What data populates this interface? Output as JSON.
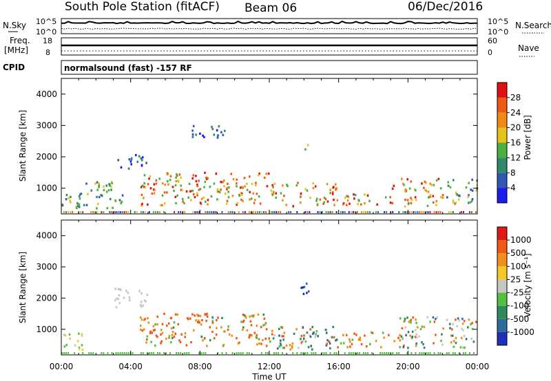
{
  "header": {
    "station": "South Pole Station (fitACF)",
    "beam": "Beam 06",
    "date": "06/Dec/2016"
  },
  "top_panels": {
    "nsky_label": "N.Sky",
    "nsearch_label": "N.Search",
    "freq_label_1": "Freq.",
    "freq_label_2": "[MHz]",
    "nave_label": "Nave",
    "cpid_label": "CPID",
    "cpid_text": "normalsound (fast) -157 RF",
    "noise_left_ticks": [
      "10^5",
      "10^0"
    ],
    "noise_right_ticks": [
      "10^5",
      "10^0"
    ],
    "freq_ticks": [
      "18",
      "8"
    ],
    "nave_ticks": [
      "60",
      "0"
    ]
  },
  "chart_data": [
    {
      "type": "heatmap",
      "panel": "power",
      "ylabel": "Slant Range [km]",
      "xlabel": "",
      "ylim": [
        180,
        4500
      ],
      "xlim_hours": [
        0,
        24
      ],
      "y_ticks": [
        "1000",
        "2000",
        "3000",
        "4000"
      ],
      "x_ticks": [
        "00:00",
        "04:00",
        "08:00",
        "12:00",
        "16:00",
        "20:00",
        "00:00"
      ],
      "colorbar": {
        "label": "Power [dB]",
        "ticks": [
          "4",
          "8",
          "12",
          "16",
          "20",
          "24",
          "28"
        ],
        "colors": [
          "#1c1cf0",
          "#2e58b4",
          "#2e8a6a",
          "#4bb041",
          "#e6c21a",
          "#f08a16",
          "#ee5a14",
          "#e01010"
        ]
      },
      "regions": [
        {
          "t": [
            0.0,
            1.2
          ],
          "r": [
            300,
            900
          ],
          "level": "mid"
        },
        {
          "t": [
            1.2,
            3.5
          ],
          "r": [
            350,
            1200
          ],
          "level": "mid"
        },
        {
          "t": [
            3.0,
            5.0
          ],
          "r": [
            1600,
            2100
          ],
          "level": "low"
        },
        {
          "t": [
            4.5,
            12.0
          ],
          "r": [
            450,
            1500
          ],
          "level": "high"
        },
        {
          "t": [
            12.0,
            16.0
          ],
          "r": [
            400,
            1200
          ],
          "level": "high"
        },
        {
          "t": [
            16.0,
            19.0
          ],
          "r": [
            450,
            800
          ],
          "level": "high"
        },
        {
          "t": [
            19.0,
            22.0
          ],
          "r": [
            400,
            1300
          ],
          "level": "high"
        },
        {
          "t": [
            22.0,
            24.0
          ],
          "r": [
            500,
            1300
          ],
          "level": "mid"
        },
        {
          "t": [
            7.5,
            9.5
          ],
          "r": [
            2600,
            3000
          ],
          "level": "low"
        },
        {
          "t": [
            13.8,
            14.2
          ],
          "r": [
            2100,
            2400
          ],
          "level": "mid"
        }
      ]
    },
    {
      "type": "heatmap",
      "panel": "velocity",
      "ylabel": "Slant Range [km]",
      "xlabel": "Time UT",
      "ylim": [
        180,
        4500
      ],
      "xlim_hours": [
        0,
        24
      ],
      "y_ticks": [
        "1000",
        "2000",
        "3000",
        "4000"
      ],
      "x_ticks": [
        "00:00",
        "04:00",
        "08:00",
        "12:00",
        "16:00",
        "20:00",
        "00:00"
      ],
      "colorbar": {
        "label": "Velocity [m s⁻¹]",
        "ticks": [
          "1000",
          "500",
          "100",
          "25",
          "-25",
          "-100",
          "-500",
          "-1000"
        ],
        "colors": [
          "#1f2fb8",
          "#2f6b9a",
          "#2e8a5a",
          "#52c040",
          "#c8c8c0",
          "#f5c828",
          "#f0901a",
          "#f05a14",
          "#e01818"
        ]
      },
      "regions": [
        {
          "t": [
            0.0,
            1.2
          ],
          "r": [
            300,
            900
          ],
          "v": "slow"
        },
        {
          "t": [
            3.0,
            5.0
          ],
          "r": [
            1700,
            2300
          ],
          "v": "zero"
        },
        {
          "t": [
            4.5,
            12.0
          ],
          "r": [
            450,
            1500
          ],
          "v": "away"
        },
        {
          "t": [
            12.0,
            16.0
          ],
          "r": [
            350,
            1100
          ],
          "v": "mixed"
        },
        {
          "t": [
            16.0,
            19.5
          ],
          "r": [
            400,
            900
          ],
          "v": "away"
        },
        {
          "t": [
            19.5,
            24.0
          ],
          "r": [
            400,
            1400
          ],
          "v": "mixed"
        },
        {
          "t": [
            13.8,
            14.3
          ],
          "r": [
            2000,
            2500
          ],
          "v": "toward"
        }
      ]
    }
  ]
}
